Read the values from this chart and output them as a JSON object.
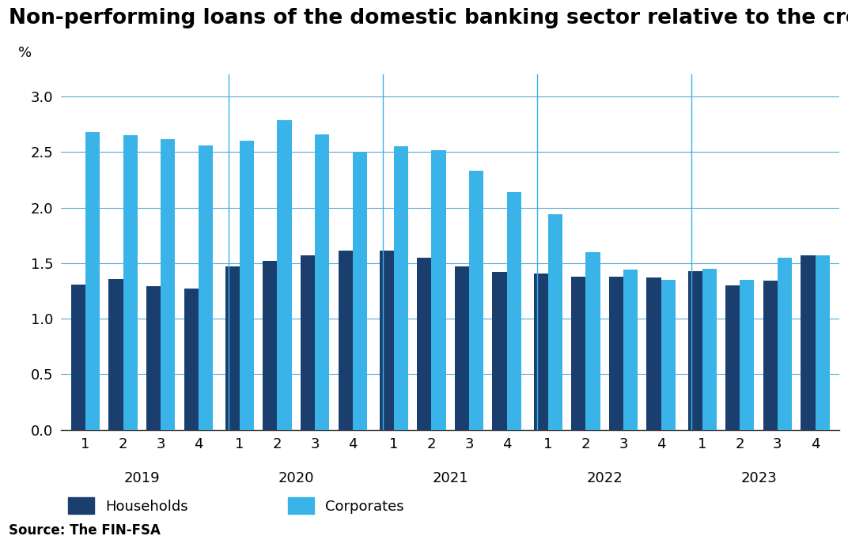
{
  "title": "Non-performing loans of the domestic banking sector relative to the credit stock",
  "ylabel": "%",
  "source": "Source: The FIN-FSA",
  "ylim": [
    0.0,
    3.2
  ],
  "yticks": [
    0.0,
    0.5,
    1.0,
    1.5,
    2.0,
    2.5,
    3.0
  ],
  "years": [
    "2019",
    "2020",
    "2021",
    "2022",
    "2023"
  ],
  "quarters": [
    1,
    2,
    3,
    4
  ],
  "households": [
    1.31,
    1.36,
    1.29,
    1.27,
    1.47,
    1.52,
    1.57,
    1.61,
    1.61,
    1.55,
    1.47,
    1.42,
    1.41,
    1.38,
    1.38,
    1.37,
    1.43,
    1.3,
    1.34,
    1.57
  ],
  "corporates": [
    2.68,
    2.65,
    2.62,
    2.56,
    2.6,
    2.79,
    2.66,
    2.5,
    2.55,
    2.52,
    2.33,
    2.14,
    1.94,
    1.6,
    1.44,
    1.35,
    1.45,
    1.35,
    1.55,
    1.57
  ],
  "color_households": "#1a3f6f",
  "color_corporates": "#3ab4e8",
  "color_separator": "#3ab4e8",
  "bar_width": 0.35,
  "title_fontsize": 19,
  "axis_fontsize": 13,
  "tick_fontsize": 13,
  "legend_fontsize": 13,
  "source_fontsize": 12
}
